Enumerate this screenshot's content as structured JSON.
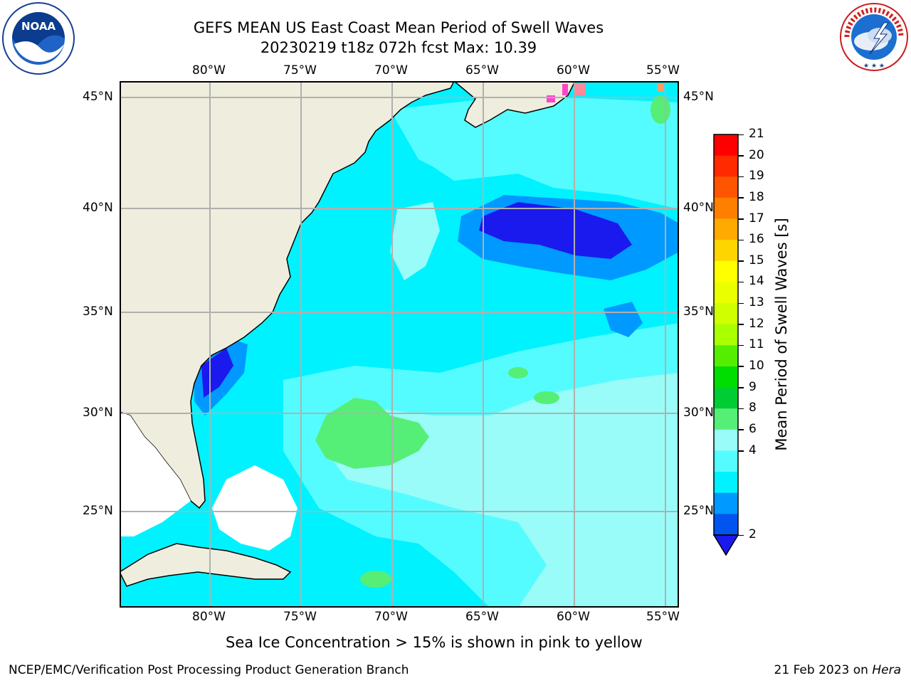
{
  "title": {
    "line1": "GEFS MEAN US East Coast Mean Period of Swell Waves",
    "line2": "20230219 t18z 072h fcst   Max: 10.39"
  },
  "logos": {
    "noaa": {
      "text": "NOAA",
      "ring_text": "NATIONAL OCEANIC AND ATMOSPHERIC ADMINISTRATION · U.S. DEPARTMENT OF COMMERCE",
      "icon": "noaa-logo"
    },
    "nws": {
      "ring_text": "NATIONAL WEATHER SERVICE",
      "icon": "nws-logo"
    }
  },
  "map": {
    "lon_labels": [
      "80°W",
      "75°W",
      "70°W",
      "65°W",
      "60°W",
      "55°W"
    ],
    "lat_labels": [
      "45°N",
      "40°N",
      "35°N",
      "30°N",
      "25°N"
    ],
    "gridlines": true,
    "land_color": "#efeddd",
    "ocean_color": "#ffffff"
  },
  "colorbar": {
    "label": "Mean Period of Swell Waves [s]",
    "ticks": [
      "21",
      "20",
      "19",
      "18",
      "17",
      "16",
      "15",
      "14",
      "13",
      "12",
      "11",
      "10",
      "9",
      "8",
      "6",
      "4",
      "2"
    ],
    "colors_top_to_bottom": [
      "#ff0000",
      "#ff2a00",
      "#ff5500",
      "#ff8000",
      "#ffaa00",
      "#ffd500",
      "#ffff00",
      "#eaff00",
      "#d0ff00",
      "#aaff00",
      "#55ee00",
      "#00dd00",
      "#00cc33",
      "#55ee77",
      "#99fcf8",
      "#55fcff",
      "#00f2ff",
      "#0099ff",
      "#0055ee"
    ],
    "under_color": "#1a1aee"
  },
  "notes": {
    "sea_ice": "Sea Ice Concentration > 15% is shown in pink to yellow",
    "credit": "NCEP/EMC/Verification Post Processing Product Generation Branch",
    "date_prefix": "21 Feb 2023 on ",
    "machine": "Hera"
  }
}
